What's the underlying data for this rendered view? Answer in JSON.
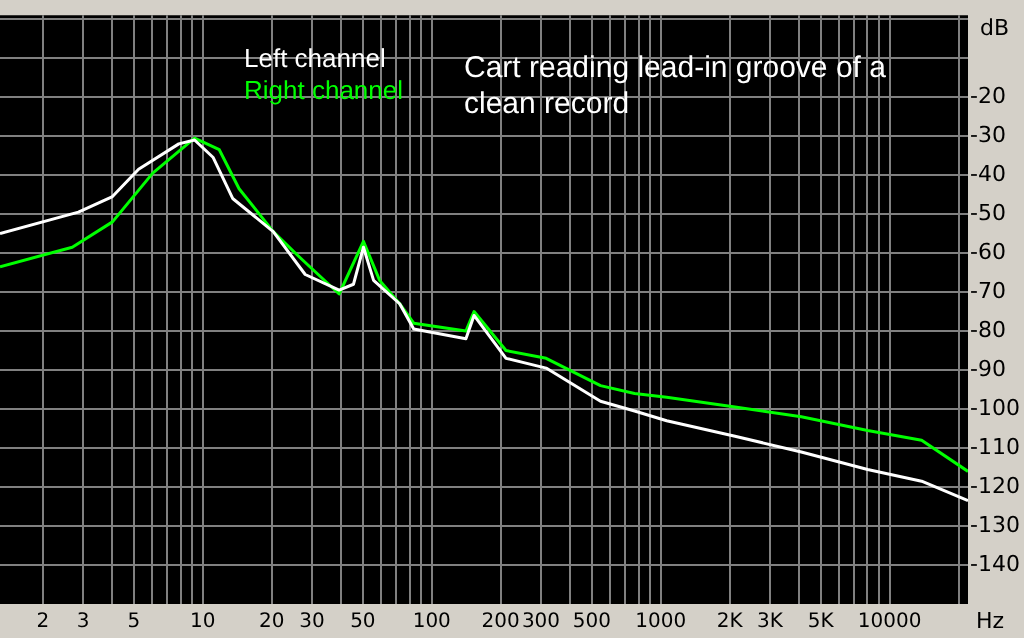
{
  "chart_data": {
    "type": "line",
    "title": "Cart reading lead-in groove of a clean record",
    "xlabel": "Hz",
    "ylabel": "dB",
    "log": "x",
    "grid": true,
    "legend": "top left",
    "marker": "none",
    "line_style": "solid",
    "xlim": [
      1.3,
      22000
    ],
    "ylim": [
      -150,
      1
    ],
    "xticks": [
      2,
      3,
      {
        "value": 4,
        "label": null
      },
      5,
      {
        "value": 6,
        "label": null
      },
      {
        "value": 7,
        "label": null
      },
      {
        "value": 8,
        "label": null
      },
      {
        "value": 9,
        "label": null
      },
      10,
      20,
      30,
      {
        "value": 40,
        "label": null
      },
      50,
      {
        "value": 60,
        "label": null
      },
      {
        "value": 70,
        "label": null
      },
      {
        "value": 80,
        "label": null
      },
      {
        "value": 90,
        "label": null
      },
      100,
      200,
      300,
      {
        "value": 400,
        "label": null
      },
      500,
      {
        "value": 600,
        "label": null
      },
      {
        "value": 700,
        "label": null
      },
      {
        "value": 800,
        "label": null
      },
      {
        "value": 900,
        "label": null
      },
      1000,
      {
        "value": 2000,
        "label": "2K"
      },
      {
        "value": 3000,
        "label": "3K"
      },
      {
        "value": 4000,
        "label": null
      },
      {
        "value": 5000,
        "label": "5K"
      },
      {
        "value": 6000,
        "label": null
      },
      {
        "value": 7000,
        "label": null
      },
      {
        "value": 8000,
        "label": null
      },
      {
        "value": 9000,
        "label": null
      },
      10000,
      {
        "value": 20000,
        "label": null
      }
    ],
    "yticks": [
      {
        "value": 0,
        "label": null
      },
      {
        "value": -10,
        "label": null
      },
      -20,
      -30,
      -40,
      -50,
      -60,
      -70,
      -80,
      -90,
      -100,
      -110,
      -120,
      -130,
      -140
    ],
    "series": [
      {
        "name": "Left channel",
        "color": "#ffffff",
        "x": [
          1.3,
          2.86,
          4.03,
          5.24,
          7.85,
          9.2,
          11.1,
          13.5,
          20.3,
          28,
          39.4,
          45.5,
          50.3,
          55.7,
          72.4,
          83.4,
          141,
          153,
          211,
          316,
          546,
          769,
          1062,
          2112,
          4115,
          8017,
          13800,
          22000
        ],
        "values": [
          -55,
          -49.5,
          -45.5,
          -38.5,
          -32,
          -31,
          -35.5,
          -46,
          -54.5,
          -65.5,
          -69.5,
          -68,
          -58.5,
          -67,
          -73,
          -79.5,
          -82,
          -76,
          -87,
          -89.5,
          -98,
          -100.5,
          -103,
          -107,
          -111,
          -115.5,
          -118.5,
          -123.5
        ]
      },
      {
        "name": "Right channel",
        "color": "#00ff00",
        "x": [
          1.3,
          2.69,
          4.03,
          6.04,
          9.2,
          11.8,
          14.4,
          20.3,
          26.4,
          39.4,
          50.3,
          59.2,
          72.4,
          83.4,
          141,
          153,
          211,
          316,
          546,
          769,
          1062,
          2112,
          4115,
          8017,
          13800,
          22000
        ],
        "values": [
          -63.5,
          -58.5,
          -52,
          -39.5,
          -30.5,
          -33.5,
          -43.5,
          -54.5,
          -61,
          -70.5,
          -57,
          -67,
          -73,
          -78,
          -80,
          -75,
          -85,
          -87,
          -94,
          -96,
          -97,
          -99.5,
          -102,
          -105.5,
          -108,
          -116
        ]
      }
    ]
  }
}
